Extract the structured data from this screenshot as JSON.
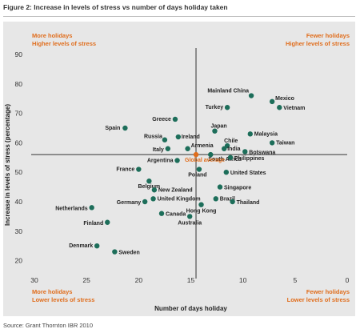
{
  "figure": {
    "title": "Figure 2: Increase in levels of stress vs number of days holiday taken",
    "source": "Source: Grant Thornton IBR 2010"
  },
  "quadrants": {
    "top_left": [
      "More holidays",
      "Higher levels of stress"
    ],
    "top_right": [
      "Fewer holidays",
      "Higher levels of stress"
    ],
    "bottom_left": [
      "More holidays",
      "Lower levels of stress"
    ],
    "bottom_right": [
      "Fewer holidays",
      "Lower levels of stress"
    ]
  },
  "colors": {
    "point": "#1d6e5a",
    "accent": "#e06d1c",
    "panel": "#e7e7e7"
  },
  "chart_data": {
    "type": "scatter",
    "title": "Figure 2: Increase in levels of stress vs number of days holiday taken",
    "xlabel": "Number of days holiday",
    "ylabel": "Increase in levels of stress (percentage)",
    "xlim": [
      30,
      0
    ],
    "ylim": [
      15,
      90
    ],
    "x_reversed": true,
    "xticks": [
      30,
      25,
      20,
      15,
      10,
      5,
      0
    ],
    "yticks": [
      20,
      30,
      40,
      50,
      60,
      70,
      80,
      90
    ],
    "grid": false,
    "legend": "none",
    "average": {
      "label": "Global average",
      "x": 14.5,
      "y": 56
    },
    "points": [
      {
        "name": "Mainland China",
        "x": 9.2,
        "y": 76
      },
      {
        "name": "Mexico",
        "x": 7.2,
        "y": 74
      },
      {
        "name": "Turkey",
        "x": 11.5,
        "y": 72
      },
      {
        "name": "Vietnam",
        "x": 6.5,
        "y": 72
      },
      {
        "name": "Greece",
        "x": 16.5,
        "y": 68
      },
      {
        "name": "Spain",
        "x": 21.3,
        "y": 65
      },
      {
        "name": "Japan",
        "x": 12.7,
        "y": 64
      },
      {
        "name": "Malaysia",
        "x": 9.3,
        "y": 63
      },
      {
        "name": "Russia",
        "x": 17.5,
        "y": 61
      },
      {
        "name": "Ireland",
        "x": 16.2,
        "y": 62
      },
      {
        "name": "Chile",
        "x": 11.5,
        "y": 59
      },
      {
        "name": "Taiwan",
        "x": 7.2,
        "y": 60
      },
      {
        "name": "Italy",
        "x": 17.2,
        "y": 58
      },
      {
        "name": "Armenia",
        "x": 15.3,
        "y": 58
      },
      {
        "name": "India",
        "x": 11.8,
        "y": 58
      },
      {
        "name": "Botswana",
        "x": 9.8,
        "y": 57
      },
      {
        "name": "South Africa",
        "x": 13.1,
        "y": 56
      },
      {
        "name": "Philippines",
        "x": 11.2,
        "y": 55
      },
      {
        "name": "Argentina",
        "x": 16.3,
        "y": 54
      },
      {
        "name": "France",
        "x": 20.0,
        "y": 51
      },
      {
        "name": "Poland",
        "x": 14.2,
        "y": 51
      },
      {
        "name": "United States",
        "x": 11.6,
        "y": 50
      },
      {
        "name": "Belgium",
        "x": 19.0,
        "y": 47
      },
      {
        "name": "New Zealand",
        "x": 18.5,
        "y": 44
      },
      {
        "name": "Singapore",
        "x": 12.2,
        "y": 45
      },
      {
        "name": "Brazil",
        "x": 12.6,
        "y": 41
      },
      {
        "name": "Thailand",
        "x": 11.0,
        "y": 40
      },
      {
        "name": "Germany",
        "x": 19.4,
        "y": 40
      },
      {
        "name": "United Kingdom",
        "x": 18.6,
        "y": 41
      },
      {
        "name": "Hong Kong",
        "x": 14.0,
        "y": 39
      },
      {
        "name": "Netherlands",
        "x": 24.5,
        "y": 38
      },
      {
        "name": "Canada",
        "x": 17.8,
        "y": 36
      },
      {
        "name": "Australia",
        "x": 15.1,
        "y": 35
      },
      {
        "name": "Finland",
        "x": 23.0,
        "y": 33
      },
      {
        "name": "Denmark",
        "x": 24.0,
        "y": 25
      },
      {
        "name": "Sweden",
        "x": 22.3,
        "y": 23
      }
    ]
  }
}
